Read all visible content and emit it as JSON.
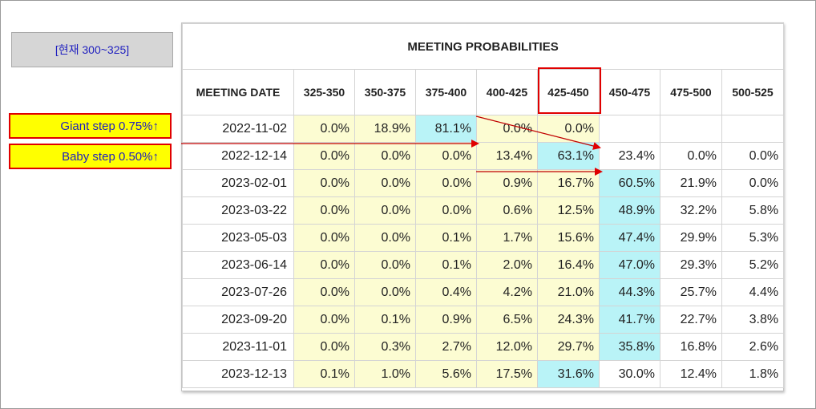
{
  "current_rate_label": "[현재 300~325]",
  "steps": {
    "giant": "Giant step 0.75%↑",
    "baby": "Baby step 0.50%↑"
  },
  "table": {
    "title": "MEETING PROBABILITIES",
    "columns": [
      "MEETING DATE",
      "325-350",
      "350-375",
      "375-400",
      "400-425",
      "425-450",
      "450-475",
      "475-500",
      "500-525"
    ],
    "rows": [
      {
        "date": "2022-11-02",
        "values": [
          "0.0%",
          "18.9%",
          "81.1%",
          "0.0%",
          "0.0%",
          "",
          "",
          ""
        ]
      },
      {
        "date": "2022-12-14",
        "values": [
          "0.0%",
          "0.0%",
          "0.0%",
          "13.4%",
          "63.1%",
          "23.4%",
          "0.0%",
          "0.0%"
        ]
      },
      {
        "date": "2023-02-01",
        "values": [
          "0.0%",
          "0.0%",
          "0.0%",
          "0.9%",
          "16.7%",
          "60.5%",
          "21.9%",
          "0.0%"
        ]
      },
      {
        "date": "2023-03-22",
        "values": [
          "0.0%",
          "0.0%",
          "0.0%",
          "0.6%",
          "12.5%",
          "48.9%",
          "32.2%",
          "5.8%"
        ]
      },
      {
        "date": "2023-05-03",
        "values": [
          "0.0%",
          "0.0%",
          "0.1%",
          "1.7%",
          "15.6%",
          "47.4%",
          "29.9%",
          "5.3%"
        ]
      },
      {
        "date": "2023-06-14",
        "values": [
          "0.0%",
          "0.0%",
          "0.1%",
          "2.0%",
          "16.4%",
          "47.0%",
          "29.3%",
          "5.2%"
        ]
      },
      {
        "date": "2023-07-26",
        "values": [
          "0.0%",
          "0.0%",
          "0.4%",
          "4.2%",
          "21.0%",
          "44.3%",
          "25.7%",
          "4.4%"
        ]
      },
      {
        "date": "2023-09-20",
        "values": [
          "0.0%",
          "0.1%",
          "0.9%",
          "6.5%",
          "24.3%",
          "41.7%",
          "22.7%",
          "3.8%"
        ]
      },
      {
        "date": "2023-11-01",
        "values": [
          "0.0%",
          "0.3%",
          "2.7%",
          "12.0%",
          "29.7%",
          "35.8%",
          "16.8%",
          "2.6%"
        ]
      },
      {
        "date": "2023-12-13",
        "values": [
          "0.1%",
          "1.0%",
          "5.6%",
          "17.5%",
          "31.6%",
          "30.0%",
          "12.4%",
          "1.8%"
        ]
      }
    ],
    "highlights": [
      [
        null,
        "y",
        "y",
        "b",
        "y",
        "y",
        "w",
        "w",
        "w"
      ],
      [
        null,
        "y",
        "y",
        "y",
        "y",
        "b",
        "w",
        "w",
        "w"
      ],
      [
        null,
        "y",
        "y",
        "y",
        "y",
        "y",
        "b",
        "w",
        "w"
      ],
      [
        null,
        "y",
        "y",
        "y",
        "y",
        "y",
        "b",
        "w",
        "w"
      ],
      [
        null,
        "y",
        "y",
        "y",
        "y",
        "y",
        "b",
        "w",
        "w"
      ],
      [
        null,
        "y",
        "y",
        "y",
        "y",
        "y",
        "b",
        "w",
        "w"
      ],
      [
        null,
        "y",
        "y",
        "y",
        "y",
        "y",
        "b",
        "w",
        "w"
      ],
      [
        null,
        "y",
        "y",
        "y",
        "y",
        "y",
        "b",
        "w",
        "w"
      ],
      [
        null,
        "y",
        "y",
        "y",
        "y",
        "y",
        "b",
        "w",
        "w"
      ],
      [
        null,
        "y",
        "y",
        "y",
        "y",
        "b",
        "w",
        "w",
        "w"
      ]
    ]
  },
  "colors": {
    "highlight_red": "#e00000",
    "cell_yellow": "#fcfcd2",
    "cell_blue": "#b9f3f7"
  }
}
